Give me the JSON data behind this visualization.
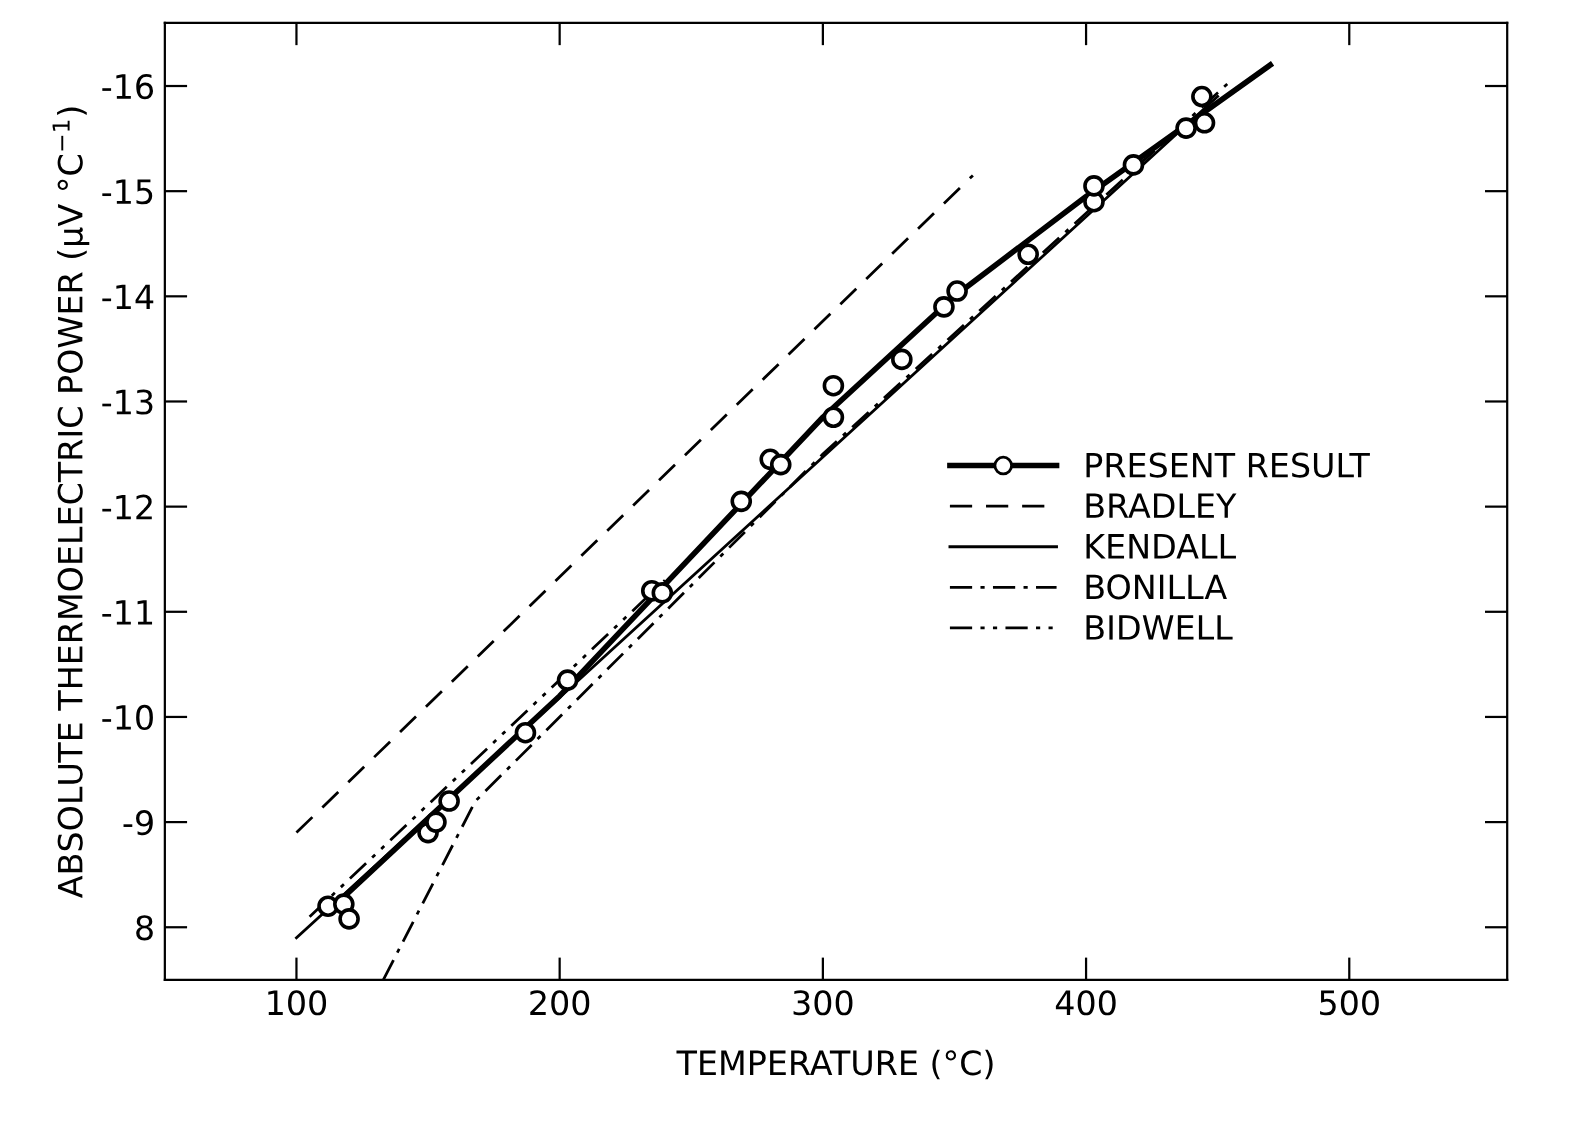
{
  "chart_data": {
    "type": "line",
    "xlabel": "TEMPERATURE (°C)",
    "ylabel": "ABSOLUTE THERMOELECTRIC POWER (μV °C$^{−1}$)",
    "xlim": [
      50,
      560
    ],
    "ylim": [
      -7.5,
      -16.6
    ],
    "xticks": [
      100,
      200,
      300,
      400,
      500
    ],
    "yticks": [
      {
        "value": -8,
        "label": "8"
      },
      -9,
      -10,
      -11,
      -12,
      -13,
      -14,
      -15,
      -16
    ],
    "grid": false,
    "legend": "right",
    "series": [
      {
        "name": "PRESENT RESULT",
        "color": "#000000",
        "line_style": "solid",
        "marker": "none",
        "x": [
          112,
          200,
          300,
          350,
          400,
          470
        ],
        "values": [
          -8.15,
          -10.2,
          -12.85,
          -14.0,
          -14.95,
          -16.2
        ]
      },
      {
        "type": "scatter",
        "color": "#000000",
        "marker": "circle",
        "x": [
          112,
          118,
          120,
          150,
          153,
          158,
          187,
          203,
          235,
          239,
          269,
          280,
          284,
          304,
          304,
          330,
          346,
          351,
          378,
          403,
          403,
          418,
          438,
          444,
          445
        ],
        "values": [
          -8.2,
          -8.22,
          -8.08,
          -8.9,
          -9.0,
          -9.2,
          -9.85,
          -10.35,
          -11.2,
          -11.18,
          -12.05,
          -12.45,
          -12.4,
          -12.85,
          -13.15,
          -13.4,
          -13.9,
          -14.05,
          -14.4,
          -14.9,
          -15.05,
          -15.25,
          -15.6,
          -15.9,
          -15.65
        ]
      },
      {
        "name": "BRADLEY",
        "color": "#000000",
        "line_style": "dashed",
        "x": [
          100,
          357
        ],
        "values": [
          -8.9,
          -15.15
        ]
      },
      {
        "name": "KENDALL",
        "color": "#000000",
        "line_style": "solid",
        "x": [
          100,
          450
        ],
        "values": [
          -7.9,
          -15.9
        ]
      },
      {
        "name": "BONILLA",
        "color": "#000000",
        "line_style": "dashdot",
        "x": [
          133,
          168,
          300,
          455
        ],
        "values": [
          -7.5,
          -9.2,
          -12.5,
          -16.05
        ]
      },
      {
        "name": "BIDWELL",
        "color": "#000000",
        "line_style": "dashdotdot",
        "x": [
          105,
          240
        ],
        "values": [
          -8.1,
          -11.3
        ]
      }
    ]
  }
}
